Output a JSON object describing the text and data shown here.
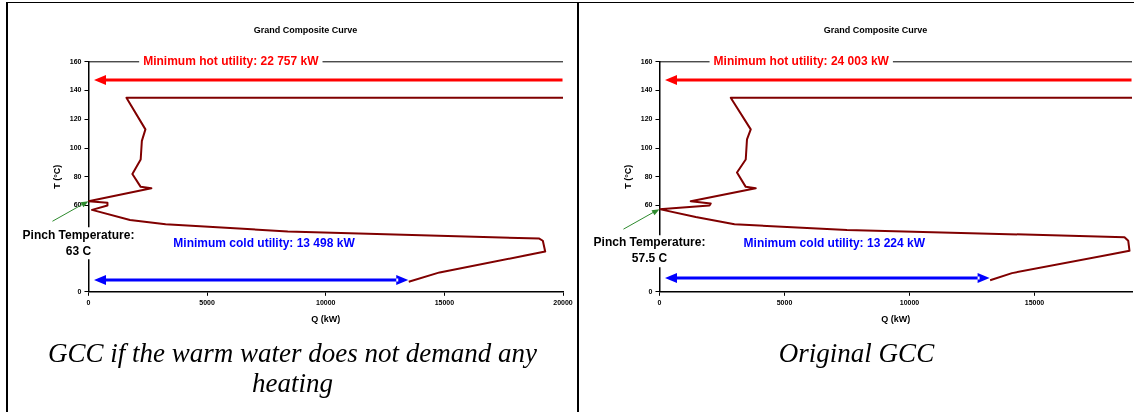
{
  "chart_data": [
    {
      "type": "line",
      "title": "Grand Composite Curve",
      "xlabel": "Q (kW)",
      "ylabel": "T (°C)",
      "xlim": [
        0,
        20000
      ],
      "xticks": [
        0,
        5000,
        10000,
        15000,
        20000
      ],
      "ylim": [
        0,
        160
      ],
      "yticks": [
        0,
        60,
        80,
        100,
        120,
        140,
        160
      ],
      "grid": false,
      "legend": false,
      "marker": "none",
      "series": [
        {
          "color": "#800000",
          "x": [
            20000,
            1600,
            2400,
            2250,
            2200,
            1850,
            2200,
            2650,
            0,
            800,
            800,
            150,
            1750,
            3250,
            8400,
            19000,
            19150,
            19250,
            14800,
            13498
          ],
          "values": [
            135,
            135,
            113,
            105,
            92,
            82,
            73,
            72,
            63,
            62,
            60,
            57,
            50,
            47,
            42,
            37,
            35.5,
            28,
            13.5,
            7
          ]
        }
      ],
      "annotations": [
        "Minimum hot utility: 22 757 kW",
        "Minimum cold utility: 13 498 kW",
        {
          "text": "Pinch Temperature:\n63 C",
          "x": 0,
          "y": 63
        },
        "GCC if the warm water does not demand any heating"
      ]
    },
    {
      "type": "line",
      "title": "Grand Composite Curve",
      "xlabel": "Q (kW)",
      "ylabel": "T (°C)",
      "xlim": [
        0,
        18900
      ],
      "xticks": [
        0,
        5000,
        10000,
        15000
      ],
      "ylim": [
        0,
        160
      ],
      "yticks": [
        0,
        60,
        80,
        100,
        120,
        140,
        160
      ],
      "grid": false,
      "legend": false,
      "marker": "none",
      "series": [
        {
          "color": "#800000",
          "x": [
            18900,
            2850,
            3650,
            3500,
            3450,
            3100,
            3450,
            3850,
            1250,
            2050,
            2000,
            0,
            1450,
            3000,
            7500,
            18600,
            18750,
            18800,
            14100,
            13224
          ],
          "values": [
            135,
            135,
            113,
            106,
            92,
            83,
            73,
            72,
            63,
            61.5,
            60,
            57.5,
            52,
            47,
            43,
            38,
            35.5,
            28.5,
            13,
            8
          ]
        }
      ],
      "annotations": [
        "Minimum hot utility: 24 003 kW",
        "Minimum cold utility: 13 224 kW",
        {
          "text": "Pinch Temperature:\n57.5 C",
          "x": 0,
          "y": 57.5
        },
        "Original GCC"
      ]
    }
  ]
}
